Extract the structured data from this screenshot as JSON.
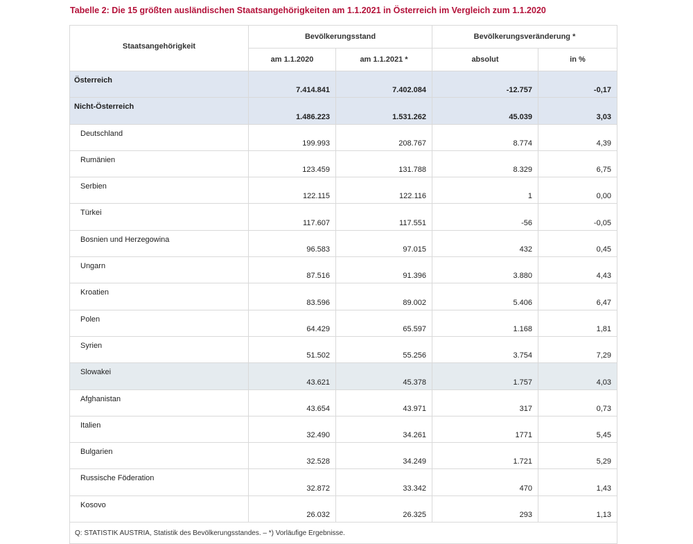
{
  "caption": "Tabelle 2: Die 15 größten ausländischen Staatsangehörigkeiten am 1.1.2021 in Österreich im Vergleich zum 1.1.2020",
  "headers": {
    "country": "Staatsangehörigkeit",
    "group1": "Bevölkerungsstand",
    "group2": "Bevölkerungsveränderung *",
    "col1": "am 1.1.2020",
    "col2": "am 1.1.2021 *",
    "col3": "absolut",
    "col4": "in %"
  },
  "rows": [
    {
      "name": "Österreich",
      "v2020": "7.414.841",
      "v2021": "7.402.084",
      "abs": "-12.757",
      "pct": "-0,17"
    },
    {
      "name": "Nicht-Österreich",
      "v2020": "1.486.223",
      "v2021": "1.531.262",
      "abs": "45.039",
      "pct": "3,03"
    },
    {
      "name": "Deutschland",
      "v2020": "199.993",
      "v2021": "208.767",
      "abs": "8.774",
      "pct": "4,39"
    },
    {
      "name": "Rumänien",
      "v2020": "123.459",
      "v2021": "131.788",
      "abs": "8.329",
      "pct": "6,75"
    },
    {
      "name": "Serbien",
      "v2020": "122.115",
      "v2021": "122.116",
      "abs": "1",
      "pct": "0,00"
    },
    {
      "name": "Türkei",
      "v2020": "117.607",
      "v2021": "117.551",
      "abs": "-56",
      "pct": "-0,05"
    },
    {
      "name": "Bosnien und Herzegowina",
      "v2020": "96.583",
      "v2021": "97.015",
      "abs": "432",
      "pct": "0,45"
    },
    {
      "name": "Ungarn",
      "v2020": "87.516",
      "v2021": "91.396",
      "abs": "3.880",
      "pct": "4,43"
    },
    {
      "name": "Kroatien",
      "v2020": "83.596",
      "v2021": "89.002",
      "abs": "5.406",
      "pct": "6,47"
    },
    {
      "name": "Polen",
      "v2020": "64.429",
      "v2021": "65.597",
      "abs": "1.168",
      "pct": "1,81"
    },
    {
      "name": "Syrien",
      "v2020": "51.502",
      "v2021": "55.256",
      "abs": "3.754",
      "pct": "7,29"
    },
    {
      "name": "Slowakei",
      "v2020": "43.621",
      "v2021": "45.378",
      "abs": "1.757",
      "pct": "4,03"
    },
    {
      "name": "Afghanistan",
      "v2020": "43.654",
      "v2021": "43.971",
      "abs": "317",
      "pct": "0,73"
    },
    {
      "name": "Italien",
      "v2020": "32.490",
      "v2021": "34.261",
      "abs": "1771",
      "pct": "5,45"
    },
    {
      "name": "Bulgarien",
      "v2020": "32.528",
      "v2021": "34.249",
      "abs": "1.721",
      "pct": "5,29"
    },
    {
      "name": "Russische Föderation",
      "v2020": "32.872",
      "v2021": "33.342",
      "abs": "470",
      "pct": "1,43"
    },
    {
      "name": "Kosovo",
      "v2020": "26.032",
      "v2021": "26.325",
      "abs": "293",
      "pct": "1,13"
    }
  ],
  "source": "Q: STATISTIK AUSTRIA, Statistik des Bevölkerungsstandes. – *) Vorläufige Ergebnisse.",
  "colors": {
    "caption": "#b4123a",
    "summary_row_bg": "#dfe6f1",
    "highlight_row_bg": "#e5ebef",
    "border": "#d9d9d9"
  }
}
